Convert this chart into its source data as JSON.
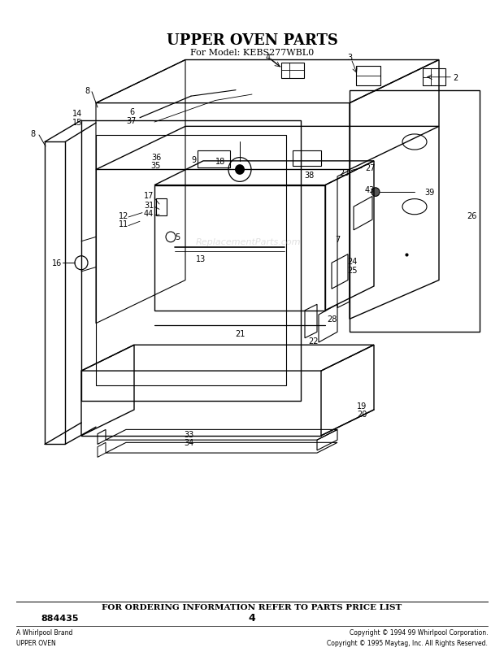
{
  "title": "UPPER OVEN PARTS",
  "subtitle": "For Model: KEBS277WBL0",
  "footer_text": "FOR ORDERING INFORMATION REFER TO PARTS PRICE LIST",
  "page_number": "4",
  "part_number": "884435",
  "copyright_left": "A Whirlpool Brand\nUPPER OVEN",
  "copyright_right": "Copyright © 1994 99 Whirlpool Corporation.\nCopyright © 1995 Maytag, Inc. All Rights Reserved.",
  "bg_color": "#ffffff",
  "text_color": "#000000",
  "watermark": "ReplacementParts.com",
  "figsize": [
    6.2,
    8.03
  ],
  "dpi": 100
}
